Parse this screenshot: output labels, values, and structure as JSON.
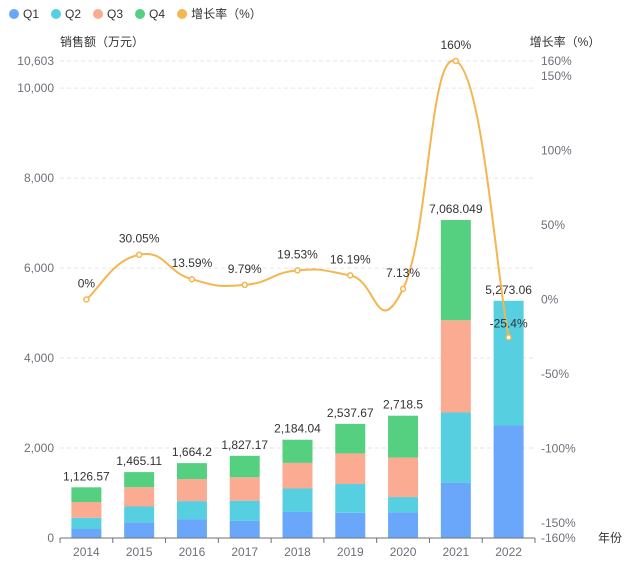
{
  "chart_data": {
    "type": "bar+line",
    "title": "",
    "categories": [
      "2014",
      "2015",
      "2016",
      "2017",
      "2018",
      "2019",
      "2020",
      "2021",
      "2022"
    ],
    "xlabel": "年份",
    "ylabel_left": "销售额（万元）",
    "ylabel_right": "增长率（%）",
    "ylim_left": [
      0,
      10603
    ],
    "left_ticks": [
      "0",
      "2,000",
      "4,000",
      "6,000",
      "8,000",
      "10,000",
      "10,603"
    ],
    "ylim_right": [
      -160,
      160
    ],
    "right_ticks": [
      "-160%",
      "-150%",
      "-100%",
      "-50%",
      "0%",
      "50%",
      "100%",
      "150%",
      "160%"
    ],
    "stack_series": [
      {
        "name": "Q1",
        "color": "#6aa7fb",
        "values": [
          200,
          350,
          420,
          380,
          580,
          560,
          570,
          1230,
          2500
        ]
      },
      {
        "name": "Q2",
        "color": "#56cfe0",
        "values": [
          250,
          350,
          400,
          450,
          520,
          640,
          340,
          1560,
          2773.06
        ]
      },
      {
        "name": "Q3",
        "color": "#fbab92",
        "values": [
          350,
          430,
          490,
          520,
          570,
          680,
          880,
          2050,
          0
        ]
      },
      {
        "name": "Q4",
        "color": "#55cf80",
        "values": [
          326.57,
          335.11,
          354.2,
          477.17,
          514.04,
          657.67,
          928.5,
          2228.049,
          0
        ]
      }
    ],
    "totals": [
      "1,126.57",
      "1,465.11",
      "1,664.2",
      "1,827.17",
      "2,184.04",
      "2,537.67",
      "2,718.5",
      "7,068.049",
      "5,273.06"
    ],
    "line_series": {
      "name": "增长率（%）",
      "color": "#f4b650",
      "values": [
        0,
        30.05,
        13.59,
        9.79,
        19.53,
        16.19,
        7.13,
        160,
        -25.4
      ],
      "labels": [
        "0%",
        "30.05%",
        "13.59%",
        "9.79%",
        "19.53%",
        "16.19%",
        "7.13%",
        "160%",
        "-25.4%"
      ]
    },
    "legend": [
      "Q1",
      "Q2",
      "Q3",
      "Q4",
      "增长率（%）"
    ],
    "legend_position": "top-left",
    "grid": true
  }
}
